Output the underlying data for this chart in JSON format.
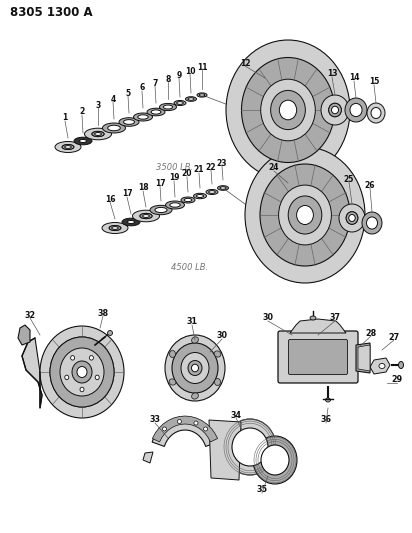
{
  "title": "8305 1300 A",
  "bg_color": "#ffffff",
  "label_3500": "3500 LB.",
  "label_4500": "4500 LB.",
  "fig_width": 4.12,
  "fig_height": 5.33,
  "dpi": 100
}
